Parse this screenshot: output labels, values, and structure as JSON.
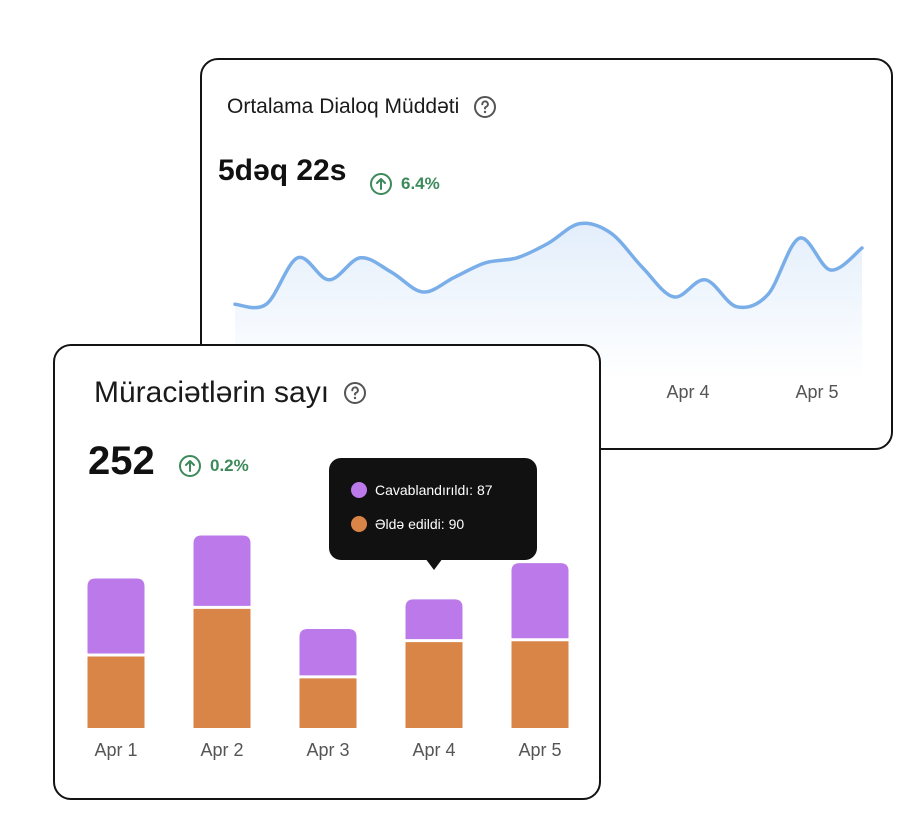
{
  "colors": {
    "line": "#7aaee9",
    "area_top": "#e3eefb",
    "area_bottom": "#ffffff",
    "answered": "#bb79ea",
    "received": "#d98547",
    "positive": "#3c8a5a"
  },
  "dialog_card": {
    "title": "Ortalama Dialoq Müddəti",
    "help_icon": "question-circle-icon",
    "value": "5dəq 22s",
    "change": "6.4%",
    "change_icon": "arrow-up-circle-icon",
    "x_labels": [
      "Apr 4",
      "Apr 5"
    ]
  },
  "requests_card": {
    "title": "Müraciətlərin sayı",
    "help_icon": "question-circle-icon",
    "value": "252",
    "change": "0.2%",
    "change_icon": "arrow-up-circle-icon"
  },
  "tooltip": {
    "rows": [
      {
        "label": "Cavablandırıldı: 87",
        "color": "#bb79ea"
      },
      {
        "label": "Əldə edildi: 90",
        "color": "#d98547"
      }
    ]
  },
  "chart_data": [
    {
      "type": "area",
      "title": "Ortalama Dialoq Müddəti",
      "x_tick_labels": [
        "Apr 4",
        "Apr 5"
      ],
      "series": [
        {
          "values": [
            31,
            31,
            50,
            41,
            50,
            44,
            36,
            42,
            48,
            50,
            56,
            64,
            60,
            46,
            34,
            41,
            30,
            35,
            58,
            45,
            54
          ]
        }
      ],
      "ylim": [
        0,
        90
      ],
      "grid": false
    },
    {
      "type": "bar",
      "stacked": true,
      "title": "Müraciətlərin sayı",
      "categories": [
        "Apr 1",
        "Apr 2",
        "Apr 3",
        "Apr 4",
        "Apr 5"
      ],
      "series": [
        {
          "values": [
            75,
            125,
            52,
            90,
            91
          ]
        },
        {
          "values": [
            85,
            80,
            55,
            48,
            85
          ]
        }
      ],
      "ylim": [
        0,
        215
      ],
      "grid": false
    }
  ]
}
